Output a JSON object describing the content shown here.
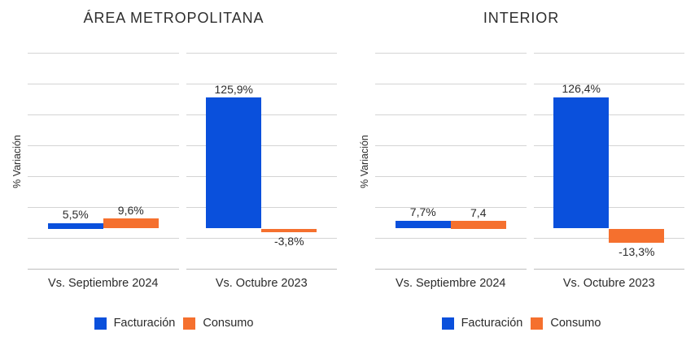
{
  "chart_data": [
    {
      "type": "bar",
      "title": "ÁREA METROPOLITANA",
      "ylabel": "% Variación",
      "categories": [
        "Vs. Septiembre 2024",
        "Vs. Octubre 2023"
      ],
      "series": [
        {
          "name": "Facturación",
          "color": "#0a50dc",
          "values": [
            5.5,
            125.9
          ],
          "labels": [
            "5,5%",
            "125,9%"
          ]
        },
        {
          "name": "Consumo",
          "color": "#f5702e",
          "values": [
            9.6,
            -3.8
          ],
          "labels": [
            "9,6%",
            "-3,8%"
          ]
        }
      ],
      "ylim": [
        -40,
        170
      ],
      "grid": true,
      "legend_position": "bottom"
    },
    {
      "type": "bar",
      "title": "INTERIOR",
      "ylabel": "% Variación",
      "categories": [
        "Vs. Septiembre 2024",
        "Vs. Octubre 2023"
      ],
      "series": [
        {
          "name": "Facturación",
          "color": "#0a50dc",
          "values": [
            7.7,
            126.4
          ],
          "labels": [
            "7,7%",
            "126,4%"
          ]
        },
        {
          "name": "Consumo",
          "color": "#f5702e",
          "values": [
            7.4,
            -13.3
          ],
          "labels": [
            "7,4",
            "-13,3%"
          ]
        }
      ],
      "ylim": [
        -40,
        170
      ],
      "grid": true,
      "legend_position": "bottom"
    }
  ],
  "colors": {
    "facturacion": "#0a50dc",
    "consumo": "#f5702e",
    "gridline": "#d4d4d4",
    "axis_line": "#bdbdbd",
    "text": "#2b2b2b"
  }
}
